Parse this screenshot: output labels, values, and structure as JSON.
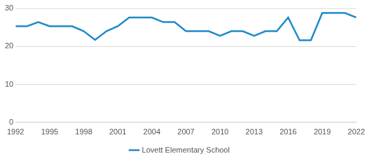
{
  "chart_data": {
    "type": "line",
    "x": [
      1992,
      1993,
      1994,
      1995,
      1996,
      1997,
      1998,
      1999,
      2000,
      2001,
      2002,
      2003,
      2004,
      2005,
      2006,
      2007,
      2008,
      2009,
      2010,
      2011,
      2012,
      2013,
      2014,
      2015,
      2016,
      2017,
      2018,
      2019,
      2020,
      2021,
      2022
    ],
    "series": [
      {
        "name": "Lovett Elementary School",
        "color": "#1f8ac9",
        "values": [
          25.3,
          25.3,
          26.4,
          25.3,
          25.3,
          25.3,
          24.0,
          21.7,
          24.0,
          25.3,
          27.6,
          27.6,
          27.6,
          26.4,
          26.4,
          24.0,
          24.0,
          24.0,
          22.8,
          24.0,
          24.0,
          22.8,
          24.0,
          24.0,
          27.6,
          21.6,
          21.6,
          28.8,
          28.8,
          28.8,
          27.6
        ]
      }
    ],
    "xlim": [
      1992,
      2022
    ],
    "xticks": [
      1992,
      1995,
      1998,
      2001,
      2004,
      2007,
      2010,
      2013,
      2016,
      2019,
      2022
    ],
    "ylim": [
      0,
      30
    ],
    "yticks": [
      0,
      10,
      20,
      30
    ],
    "grid": true,
    "legend": "bottom"
  }
}
